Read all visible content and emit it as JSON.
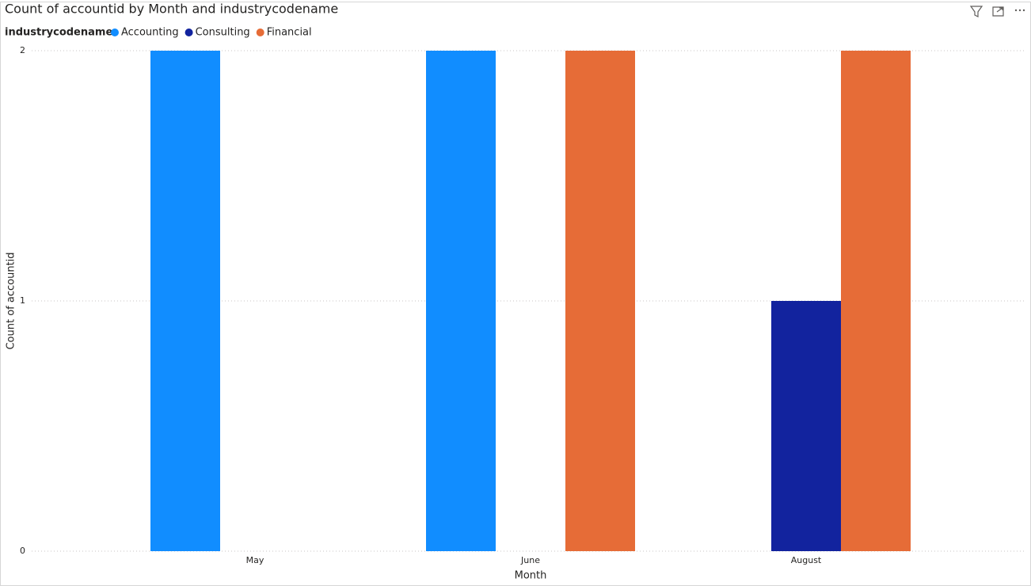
{
  "chart_data": {
    "type": "bar",
    "title": "Count of accountid by Month and industrycodename",
    "legend_title": "industrycodename",
    "legend_position": "top-left",
    "x_label": "Month",
    "y_label": "Count of accountid",
    "categories": [
      "May",
      "June",
      "August"
    ],
    "series": [
      {
        "name": "Accounting",
        "color": "#118dff",
        "values": [
          2,
          2,
          null
        ]
      },
      {
        "name": "Consulting",
        "color": "#12239e",
        "values": [
          null,
          null,
          1
        ]
      },
      {
        "name": "Financial",
        "color": "#e66c37",
        "values": [
          null,
          2,
          2
        ]
      }
    ],
    "ylim": [
      0,
      2
    ],
    "yticks": [
      0,
      1,
      2
    ],
    "grid": true
  }
}
